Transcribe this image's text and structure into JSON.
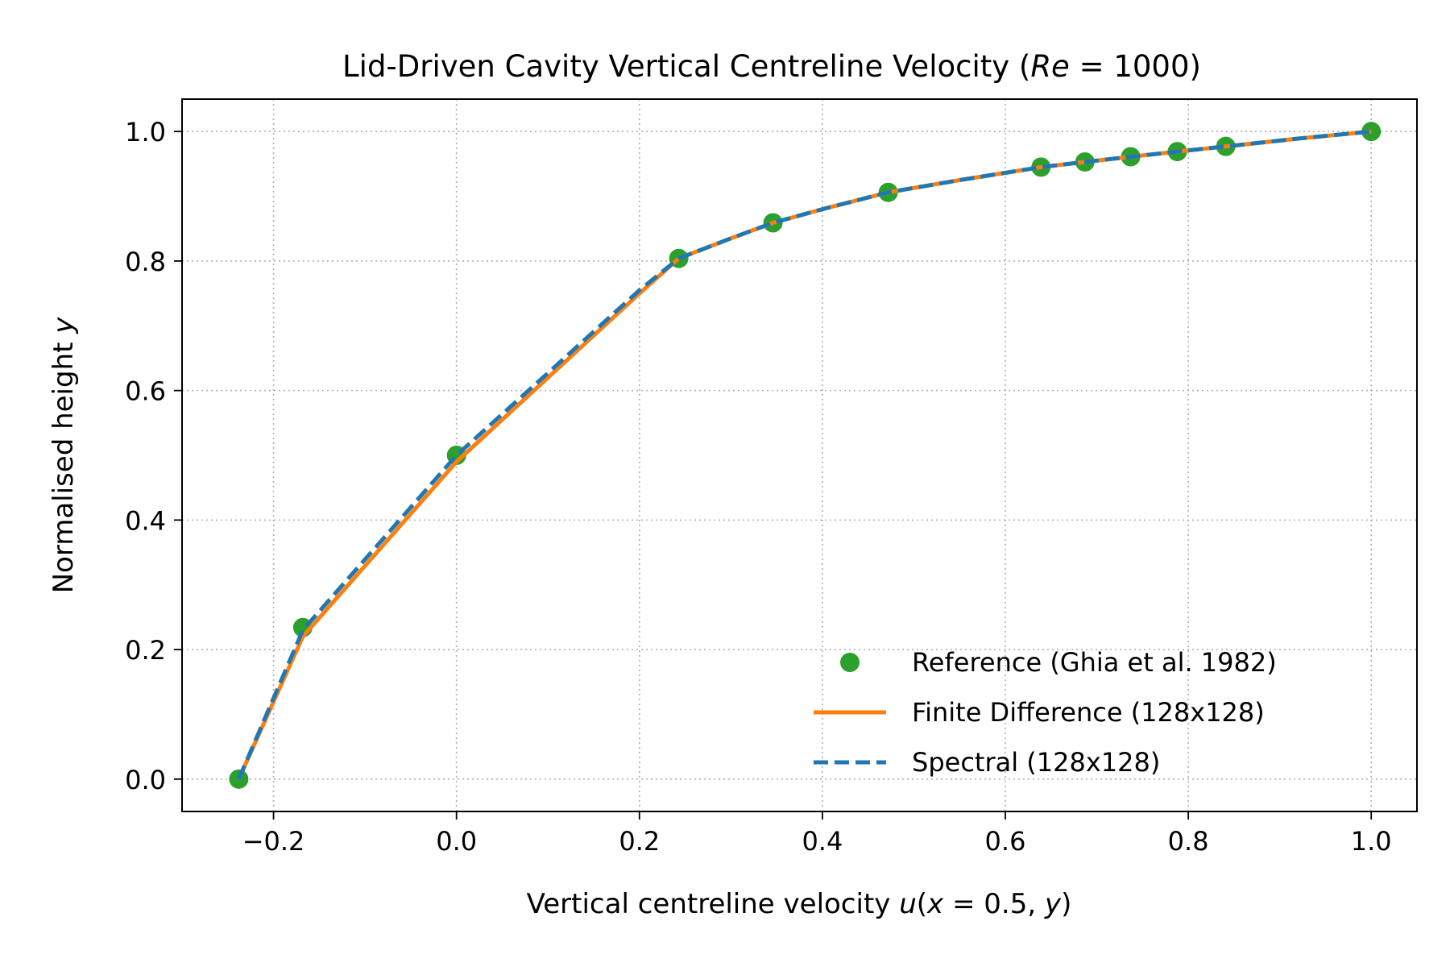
{
  "chart_data": {
    "type": "line",
    "title": "Lid-Driven Cavity Vertical Centreline Velocity (Re = 1000)",
    "xlabel": "Vertical centreline velocity u(x = 0.5, y)",
    "ylabel": "Normalised height y",
    "xlim": [
      -0.3,
      1.05
    ],
    "ylim": [
      -0.05,
      1.05
    ],
    "xticks": [
      -0.2,
      0.0,
      0.2,
      0.4,
      0.6,
      0.8,
      1.0
    ],
    "xtick_labels": [
      "−0.2",
      "0.0",
      "0.2",
      "0.4",
      "0.6",
      "0.8",
      "1.0"
    ],
    "yticks": [
      0.0,
      0.2,
      0.4,
      0.6,
      0.8,
      1.0
    ],
    "ytick_labels": [
      "0.0",
      "0.2",
      "0.4",
      "0.6",
      "0.8",
      "1.0"
    ],
    "grid": true,
    "legend_position": "lower-right",
    "series": [
      {
        "name": "Reference (Ghia et al. 1982)",
        "style": "markers",
        "color": "#2ca02c",
        "x": [
          -0.238,
          -0.168,
          0.0,
          0.243,
          0.346,
          0.472,
          0.639,
          0.687,
          0.737,
          0.788,
          0.841,
          1.0
        ],
        "y": [
          0.0,
          0.234,
          0.5,
          0.804,
          0.859,
          0.906,
          0.945,
          0.953,
          0.961,
          0.969,
          0.977,
          1.0
        ]
      },
      {
        "name": "Finite Difference (128x128)",
        "style": "solid",
        "color": "#ff7f0e",
        "x": [
          -0.238,
          -0.168,
          0.0,
          0.1,
          0.2,
          0.243,
          0.3,
          0.346,
          0.4,
          0.472,
          0.55,
          0.639,
          0.687,
          0.737,
          0.788,
          0.841,
          0.92,
          1.0
        ],
        "y": [
          0.0,
          0.22,
          0.49,
          0.62,
          0.75,
          0.804,
          0.835,
          0.859,
          0.88,
          0.906,
          0.925,
          0.945,
          0.953,
          0.961,
          0.969,
          0.977,
          0.989,
          1.0
        ]
      },
      {
        "name": "Spectral (128x128)",
        "style": "dashed",
        "color": "#1f77b4",
        "x": [
          -0.238,
          -0.168,
          0.0,
          0.1,
          0.2,
          0.243,
          0.3,
          0.346,
          0.4,
          0.472,
          0.55,
          0.639,
          0.687,
          0.737,
          0.788,
          0.841,
          0.92,
          1.0
        ],
        "y": [
          0.0,
          0.23,
          0.5,
          0.627,
          0.755,
          0.804,
          0.835,
          0.859,
          0.88,
          0.906,
          0.925,
          0.945,
          0.953,
          0.961,
          0.969,
          0.977,
          0.989,
          1.0
        ]
      }
    ]
  }
}
